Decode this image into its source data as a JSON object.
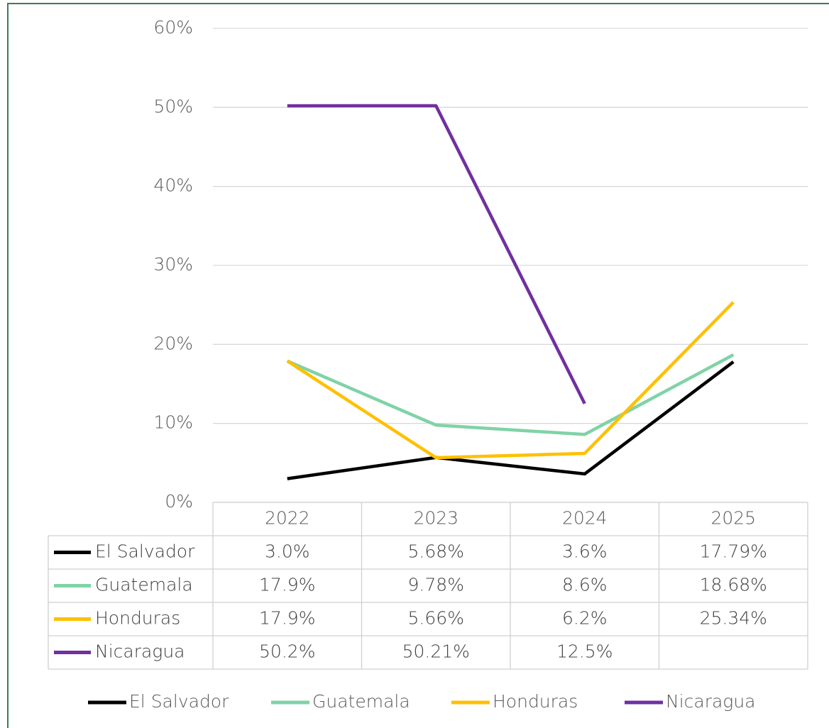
{
  "chart_data": {
    "type": "line",
    "categories": [
      "2022",
      "2023",
      "2024",
      "2025"
    ],
    "series": [
      {
        "name": "El Salvador",
        "color": "#000000",
        "values": [
          3.0,
          5.68,
          3.6,
          17.79
        ],
        "value_labels": [
          "3.0%",
          "5.68%",
          "3.6%",
          "17.79%"
        ]
      },
      {
        "name": "Guatemala",
        "color": "#7fd3a6",
        "values": [
          17.9,
          9.78,
          8.6,
          18.68
        ],
        "value_labels": [
          "17.9%",
          "9.78%",
          "8.6%",
          "18.68%"
        ]
      },
      {
        "name": "Honduras",
        "color": "#ffc000",
        "values": [
          17.9,
          5.66,
          6.2,
          25.34
        ],
        "value_labels": [
          "17.9%",
          "5.66%",
          "6.2%",
          "25.34%"
        ]
      },
      {
        "name": "Nicaragua",
        "color": "#7030a0",
        "values": [
          50.2,
          50.21,
          12.5,
          null
        ],
        "value_labels": [
          "50.2%",
          "50.21%",
          "12.5%",
          null
        ]
      }
    ],
    "ylim": [
      0,
      60
    ],
    "yticks": [
      {
        "value": 0,
        "label": "0%"
      },
      {
        "value": 10,
        "label": "10%"
      },
      {
        "value": 20,
        "label": "20%"
      },
      {
        "value": 30,
        "label": "30%"
      },
      {
        "value": 40,
        "label": "40%"
      },
      {
        "value": 50,
        "label": "50%"
      },
      {
        "value": 60,
        "label": "60%"
      }
    ],
    "grid": true,
    "legend": "bottom",
    "data_table": true
  }
}
